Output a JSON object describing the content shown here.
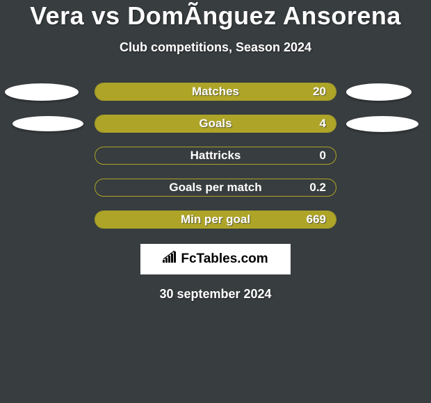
{
  "background_color": "#383d3f",
  "title": "Vera vs DomÃ­nguez Ansorena",
  "title_fontsize": 36,
  "title_color": "#ffffff",
  "subtitle": "Club competitions, Season 2024",
  "subtitle_fontsize": 18,
  "subtitle_color": "#ffffff",
  "bar_border_color": "#aea528",
  "bar_fill_color": "#aea528",
  "bar_track_width": 348,
  "bar_track_height": 26,
  "ellipse_color": "#ffffff",
  "stats": [
    {
      "label": "Matches",
      "value": "20",
      "fill_pct": 100,
      "left_ellipse": true,
      "right_ellipse": true
    },
    {
      "label": "Goals",
      "value": "4",
      "fill_pct": 100,
      "left_ellipse": true,
      "right_ellipse": true
    },
    {
      "label": "Hattricks",
      "value": "0",
      "fill_pct": 0,
      "left_ellipse": false,
      "right_ellipse": false
    },
    {
      "label": "Goals per match",
      "value": "0.2",
      "fill_pct": 0,
      "left_ellipse": false,
      "right_ellipse": false
    },
    {
      "label": "Min per goal",
      "value": "669",
      "fill_pct": 100,
      "left_ellipse": false,
      "right_ellipse": false
    }
  ],
  "logo_text": "FcTables.com",
  "date_text": "30 september 2024",
  "date_fontsize": 18,
  "date_color": "#ffffff"
}
